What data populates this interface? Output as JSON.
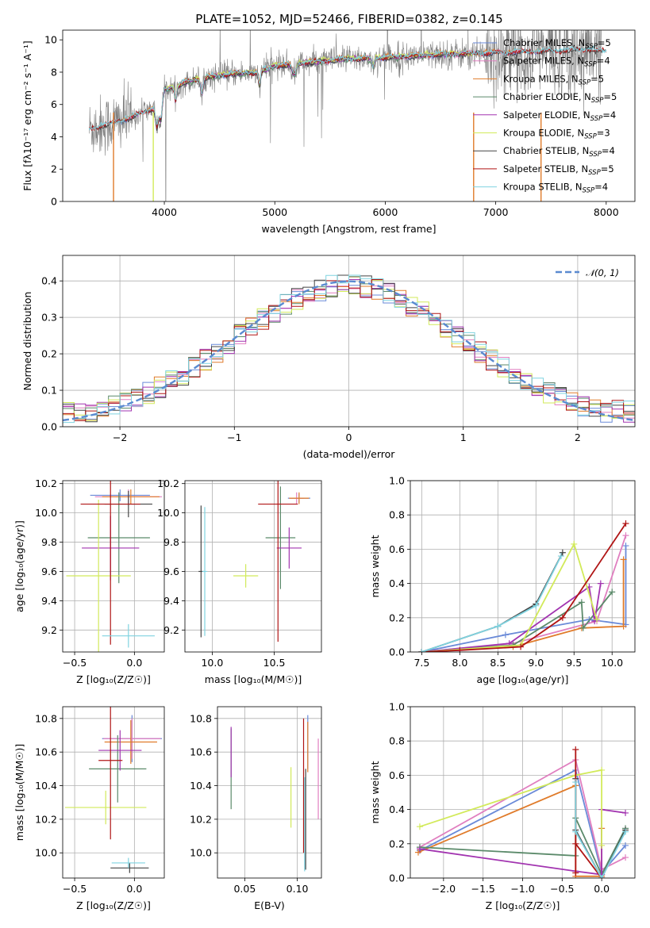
{
  "title": "PLATE=1052, MJD=52466, FIBERID=0382, z=0.145",
  "colors": {
    "Chabrier MILES": "#6a8ad8",
    "Salpeter MILES": "#e07fc0",
    "Kroupa MILES": "#e07b2a",
    "Chabrier ELODIE": "#5b8a6a",
    "Salpeter ELODIE": "#a234b0",
    "Kroupa ELODIE": "#d2ea5a",
    "Chabrier STELIB": "#444444",
    "Salpeter STELIB": "#b01515",
    "Kroupa STELIB": "#7fd3e0",
    "data": "#808080"
  },
  "chart_data": [
    {
      "type": "line",
      "id": "spectrum",
      "title": "PLATE=1052, MJD=52466, FIBERID=0382, z=0.145",
      "xlabel": "wavelength [Angstrom, rest frame]",
      "ylabel": "Flux [fλ10⁻¹⁷ erg cm⁻² s⁻¹ A⁻¹]",
      "xlim": [
        3080,
        8260
      ],
      "ylim": [
        0,
        10.6
      ],
      "xticks": [
        4000,
        5000,
        6000,
        7000,
        8000
      ],
      "yticks": [
        0,
        2,
        4,
        6,
        8,
        10
      ],
      "legend_position": "top-right",
      "legend": [
        {
          "label": "Chabrier MILES, N",
          "sub": "SSP",
          "tail": "=5",
          "model": "Chabrier MILES"
        },
        {
          "label": "Salpeter MILES, N",
          "sub": "SSP",
          "tail": "=4",
          "model": "Salpeter MILES"
        },
        {
          "label": "Kroupa MILES, N",
          "sub": "SSP",
          "tail": "=5",
          "model": "Kroupa MILES"
        },
        {
          "label": "Chabrier ELODIE, N",
          "sub": "SSP",
          "tail": "=5",
          "model": "Chabrier ELODIE"
        },
        {
          "label": "Salpeter ELODIE, N",
          "sub": "SSP",
          "tail": "=4",
          "model": "Salpeter ELODIE"
        },
        {
          "label": "Kroupa ELODIE, N",
          "sub": "SSP",
          "tail": "=3",
          "model": "Kroupa ELODIE"
        },
        {
          "label": "Chabrier STELIB, N",
          "sub": "SSP",
          "tail": "=4",
          "model": "Chabrier STELIB"
        },
        {
          "label": "Salpeter STELIB, N",
          "sub": "SSP",
          "tail": "=5",
          "model": "Salpeter STELIB"
        },
        {
          "label": "Kroupa STELIB, N",
          "sub": "SSP",
          "tail": "=4",
          "model": "Kroupa STELIB"
        }
      ],
      "continuum_knots": {
        "x": [
          3320,
          3500,
          3700,
          3900,
          4000,
          4300,
          4600,
          4860,
          5000,
          5300,
          5600,
          6000,
          6500,
          7000,
          7400,
          7800,
          8000
        ],
        "y": [
          4.5,
          4.8,
          5.2,
          5.8,
          6.9,
          7.6,
          7.9,
          8.0,
          8.4,
          8.6,
          8.8,
          8.9,
          9.1,
          9.2,
          9.3,
          9.4,
          9.3
        ]
      },
      "model_ranges": {
        "MILES": [
          3540,
          7410
        ],
        "ELODIE": [
          3900,
          6800
        ],
        "STELIB": [
          3320,
          8000
        ]
      }
    },
    {
      "type": "line",
      "id": "residuals",
      "xlabel": "(data-model)/error",
      "ylabel": "Normed distribution",
      "xlim": [
        -2.5,
        2.5
      ],
      "ylim": [
        0,
        0.47
      ],
      "xticks": [
        -2,
        -1,
        0,
        1,
        2
      ],
      "yticks": [
        0.0,
        0.1,
        0.2,
        0.3,
        0.4
      ],
      "grid": true,
      "legend_position": "top-right",
      "reference_label": "𝒩(0, 1)",
      "reference_color": "#5a8ad0",
      "bin_width": 0.1
    },
    {
      "type": "scatter",
      "id": "age-vs-Z",
      "xlabel": "Z [log₁₀(Z/Z☉)]",
      "ylabel": "age  [log₁₀(age/yr)]",
      "xlim": [
        -0.6,
        0.25
      ],
      "ylim": [
        9.05,
        10.22
      ],
      "xticks": [
        -0.5,
        0.0
      ],
      "yticks": [
        9.2,
        9.4,
        9.6,
        9.8,
        10.0,
        10.2
      ],
      "grid": true,
      "points": [
        {
          "model": "Chabrier MILES",
          "x": -0.12,
          "xerr": 0.25,
          "y": 10.12,
          "yerr": 0.04
        },
        {
          "model": "Salpeter MILES",
          "x": -0.05,
          "xerr": 0.28,
          "y": 10.11,
          "yerr": 0.05
        },
        {
          "model": "Kroupa MILES",
          "x": -0.03,
          "xerr": 0.24,
          "y": 10.11,
          "yerr": 0.05
        },
        {
          "model": "Chabrier ELODIE",
          "x": -0.13,
          "xerr": 0.26,
          "y": 9.83,
          "yerr": 0.31
        },
        {
          "model": "Salpeter ELODIE",
          "x": -0.2,
          "xerr": 0.24,
          "y": 9.76,
          "yerr": 0.22
        },
        {
          "model": "Kroupa ELODIE",
          "x": -0.3,
          "xerr": 0.27,
          "y": 9.57,
          "yerr": 0.52
        },
        {
          "model": "Chabrier STELIB",
          "x": -0.05,
          "xerr": 0.2,
          "y": 10.06,
          "yerr": 0.09
        },
        {
          "model": "Salpeter STELIB",
          "x": -0.2,
          "xerr": 0.25,
          "y": 10.06,
          "yerr": 0.96
        },
        {
          "model": "Kroupa STELIB",
          "x": -0.05,
          "xerr": 0.22,
          "y": 9.16,
          "yerr": 0.08
        }
      ]
    },
    {
      "type": "scatter",
      "id": "age-vs-mass",
      "xlabel": "mass [log₁₀(M/M☉)]",
      "ylabel": "",
      "xlim": [
        9.78,
        10.88
      ],
      "ylim": [
        9.05,
        10.22
      ],
      "xticks": [
        10.0,
        10.5
      ],
      "yticks": [
        9.2,
        9.4,
        9.6,
        9.8,
        10.0,
        10.2
      ],
      "grid": true,
      "points": [
        {
          "model": "Chabrier MILES",
          "x": 10.7,
          "xerr": 0.09,
          "y": 10.1,
          "yerr": 0.03
        },
        {
          "model": "Salpeter MILES",
          "x": 10.68,
          "xerr": 0.06,
          "y": 10.1,
          "yerr": 0.04
        },
        {
          "model": "Kroupa MILES",
          "x": 10.7,
          "xerr": 0.08,
          "y": 10.1,
          "yerr": 0.04
        },
        {
          "model": "Chabrier ELODIE",
          "x": 10.55,
          "xerr": 0.12,
          "y": 9.83,
          "yerr": 0.35
        },
        {
          "model": "Salpeter ELODIE",
          "x": 10.62,
          "xerr": 0.1,
          "y": 9.76,
          "yerr": 0.14
        },
        {
          "model": "Kroupa ELODIE",
          "x": 10.27,
          "xerr": 0.1,
          "y": 9.57,
          "yerr": 0.08
        },
        {
          "model": "Chabrier STELIB",
          "x": 9.91,
          "xerr": 0.02,
          "y": 9.6,
          "yerr": 0.45
        },
        {
          "model": "Salpeter STELIB",
          "x": 10.53,
          "xerr": 0.16,
          "y": 10.06,
          "yerr": 0.94
        },
        {
          "model": "Kroupa STELIB",
          "x": 9.94,
          "xerr": 0.02,
          "y": 9.6,
          "yerr": 0.44
        }
      ]
    },
    {
      "type": "line",
      "id": "massweight-vs-age",
      "xlabel": "age  [log₁₀(age/yr)]",
      "ylabel": "mass weight",
      "xlim": [
        7.35,
        10.3
      ],
      "ylim": [
        0,
        1
      ],
      "xticks": [
        7.5,
        8.0,
        8.5,
        9.0,
        9.5,
        10.0
      ],
      "yticks": [
        0.0,
        0.2,
        0.4,
        0.6,
        0.8,
        1.0
      ],
      "grid": true,
      "series": [
        {
          "model": "Chabrier MILES",
          "x": [
            7.5,
            8.6,
            9.7,
            10.18,
            10.18
          ],
          "y": [
            0.0,
            0.1,
            0.19,
            0.16,
            0.62
          ]
        },
        {
          "model": "Salpeter MILES",
          "x": [
            7.5,
            8.7,
            9.8,
            10.18
          ],
          "y": [
            0.0,
            0.05,
            0.18,
            0.68
          ]
        },
        {
          "model": "Kroupa MILES",
          "x": [
            7.5,
            8.7,
            9.6,
            10.15,
            10.15
          ],
          "y": [
            0.0,
            0.03,
            0.14,
            0.15,
            0.54
          ]
        },
        {
          "model": "Chabrier ELODIE",
          "x": [
            7.5,
            8.7,
            9.6,
            9.62,
            10.0
          ],
          "y": [
            0.0,
            0.04,
            0.29,
            0.14,
            0.35
          ]
        },
        {
          "model": "Salpeter ELODIE",
          "x": [
            7.5,
            8.65,
            9.7,
            9.77,
            9.85
          ],
          "y": [
            0.0,
            0.05,
            0.38,
            0.18,
            0.4
          ]
        },
        {
          "model": "Kroupa ELODIE",
          "x": [
            7.5,
            8.8,
            9.5,
            9.8
          ],
          "y": [
            0.0,
            0.04,
            0.63,
            0.19
          ]
        },
        {
          "model": "Chabrier STELIB",
          "x": [
            7.5,
            8.5,
            9.0,
            9.35
          ],
          "y": [
            0.0,
            0.15,
            0.28,
            0.58
          ]
        },
        {
          "model": "Salpeter STELIB",
          "x": [
            7.5,
            8.0,
            8.8,
            9.35,
            10.18
          ],
          "y": [
            0.0,
            0.01,
            0.03,
            0.2,
            0.75
          ]
        },
        {
          "model": "Kroupa STELIB",
          "x": [
            7.5,
            8.5,
            9.0,
            9.33
          ],
          "y": [
            0.0,
            0.15,
            0.27,
            0.56
          ]
        }
      ]
    },
    {
      "type": "scatter",
      "id": "mass-vs-Z",
      "xlabel": "Z [log₁₀(Z/Z☉)]",
      "ylabel": "mass [log₁₀(M/M☉)]",
      "xlim": [
        -0.6,
        0.25
      ],
      "ylim": [
        9.85,
        10.87
      ],
      "xticks": [
        -0.5,
        0.0
      ],
      "yticks": [
        10.0,
        10.2,
        10.4,
        10.6,
        10.8
      ],
      "grid": true,
      "points": [
        {
          "model": "Chabrier MILES",
          "x": -0.02,
          "xerr": 0.25,
          "y": 10.68,
          "yerr": 0.14
        },
        {
          "model": "Salpeter MILES",
          "x": -0.02,
          "xerr": 0.24,
          "y": 10.68,
          "yerr": 0.12
        },
        {
          "model": "Kroupa MILES",
          "x": -0.03,
          "xerr": 0.22,
          "y": 10.66,
          "yerr": 0.13
        },
        {
          "model": "Chabrier ELODIE",
          "x": -0.14,
          "xerr": 0.24,
          "y": 10.5,
          "yerr": 0.2
        },
        {
          "model": "Salpeter ELODIE",
          "x": -0.12,
          "xerr": 0.18,
          "y": 10.61,
          "yerr": 0.12
        },
        {
          "model": "Kroupa ELODIE",
          "x": -0.24,
          "xerr": 0.34,
          "y": 10.27,
          "yerr": 0.1
        },
        {
          "model": "Chabrier STELIB",
          "x": -0.04,
          "xerr": 0.16,
          "y": 9.91,
          "yerr": 0.03
        },
        {
          "model": "Salpeter STELIB",
          "x": -0.2,
          "xerr": 0.1,
          "y": 10.55,
          "yerr": 0.47
        },
        {
          "model": "Kroupa STELIB",
          "x": -0.05,
          "xerr": 0.14,
          "y": 9.94,
          "yerr": 0.03
        }
      ]
    },
    {
      "type": "scatter",
      "id": "mass-vs-ebv",
      "xlabel": "E(B-V)",
      "ylabel": "",
      "xlim": [
        0.024,
        0.123
      ],
      "ylim": [
        9.85,
        10.87
      ],
      "xticks": [
        0.05,
        0.1
      ],
      "yticks": [
        10.0,
        10.2,
        10.4,
        10.6,
        10.8
      ],
      "grid": true,
      "points": [
        {
          "model": "Chabrier MILES",
          "x": 0.11,
          "y": 10.66,
          "yerr": 0.16
        },
        {
          "model": "Salpeter MILES",
          "x": 0.12,
          "y": 10.44,
          "yerr": 0.24
        },
        {
          "model": "Kroupa MILES",
          "x": 0.11,
          "y": 10.63,
          "yerr": 0.15
        },
        {
          "model": "Chabrier ELODIE",
          "x": 0.037,
          "y": 10.5,
          "yerr": 0.24
        },
        {
          "model": "Salpeter ELODIE",
          "x": 0.037,
          "y": 10.6,
          "yerr": 0.15
        },
        {
          "model": "Kroupa ELODIE",
          "x": 0.094,
          "y": 10.33,
          "yerr": 0.18
        },
        {
          "model": "Chabrier STELIB",
          "x": 0.108,
          "y": 10.2,
          "yerr": 0.3
        },
        {
          "model": "Salpeter STELIB",
          "x": 0.106,
          "y": 10.4,
          "yerr": 0.4
        },
        {
          "model": "Kroupa STELIB",
          "x": 0.107,
          "y": 10.17,
          "yerr": 0.28
        }
      ]
    },
    {
      "type": "line",
      "id": "massweight-vs-Z",
      "xlabel": "Z [log₁₀(Z/Z☉)]",
      "ylabel": "mass weight",
      "xlim": [
        -2.42,
        0.42
      ],
      "ylim": [
        0,
        1
      ],
      "xticks": [
        -2.0,
        -1.5,
        -1.0,
        -0.5,
        0.0
      ],
      "yticks": [
        0.0,
        0.2,
        0.4,
        0.6,
        0.8,
        1.0
      ],
      "grid": true,
      "series": [
        {
          "model": "Chabrier MILES",
          "x": [
            -2.3,
            -0.33,
            0.0,
            0.3
          ],
          "y": [
            0.16,
            0.63,
            0.03,
            0.19
          ]
        },
        {
          "model": "Salpeter MILES",
          "x": [
            -2.3,
            -0.33,
            0.0,
            0.3
          ],
          "y": [
            0.18,
            0.69,
            0.05,
            0.12
          ]
        },
        {
          "model": "Kroupa MILES",
          "x": [
            -2.32,
            -0.33,
            -0.33,
            0.0,
            0.0
          ],
          "y": [
            0.15,
            0.54,
            0.01,
            0.01,
            0.29
          ]
        },
        {
          "model": "Chabrier ELODIE",
          "x": [
            -2.3,
            -0.33,
            -0.33,
            0.0,
            0.3
          ],
          "y": [
            0.18,
            0.13,
            0.35,
            0.02,
            0.29
          ]
        },
        {
          "model": "Salpeter ELODIE",
          "x": [
            -2.3,
            -0.33,
            0.0,
            0.0,
            0.3
          ],
          "y": [
            0.17,
            0.04,
            0.02,
            0.4,
            0.38
          ]
        },
        {
          "model": "Kroupa ELODIE",
          "x": [
            -2.3,
            -0.33,
            0.0,
            0.0
          ],
          "y": [
            0.3,
            0.6,
            0.63,
            0.19
          ]
        },
        {
          "model": "Chabrier STELIB",
          "x": [
            -0.33,
            -0.33,
            0.0,
            0.3
          ],
          "y": [
            0.58,
            0.28,
            0.0,
            0.28
          ]
        },
        {
          "model": "Salpeter STELIB",
          "x": [
            -0.33,
            -0.33,
            -0.33,
            0.0
          ],
          "y": [
            0.75,
            0.03,
            0.2,
            0.0
          ]
        },
        {
          "model": "Kroupa STELIB",
          "x": [
            -0.33,
            -0.33,
            0.0,
            0.3
          ],
          "y": [
            0.56,
            0.27,
            0.0,
            0.27
          ]
        }
      ]
    }
  ]
}
